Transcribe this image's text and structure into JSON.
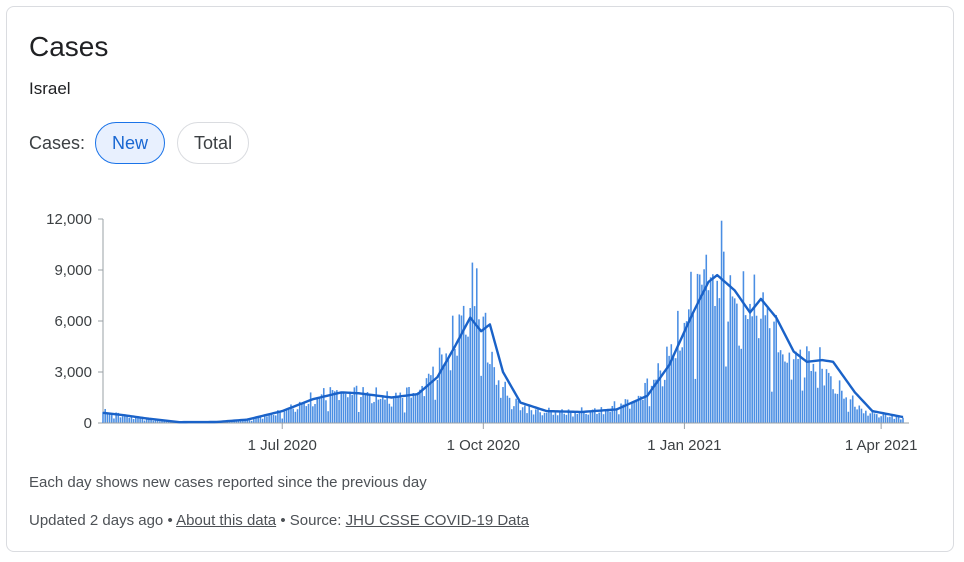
{
  "card": {
    "title": "Cases",
    "subtitle": "Israel",
    "toggle_label": "Cases:",
    "toggle_new": "New",
    "toggle_total": "Total",
    "note": "Each day shows new cases reported since the previous day",
    "updated": "Updated 2 days ago",
    "bullet": "•",
    "about_link": "About this data",
    "source_label": "Source:",
    "source_link": "JHU CSSE COVID-19 Data"
  },
  "colors": {
    "bar": "#4a8ee3",
    "line": "#1a62c8",
    "active_chip_bg": "#e8f0fe",
    "active_chip_text": "#1967d2"
  },
  "chart_data": {
    "type": "bar",
    "x_range": [
      "2020-04-10",
      "2021-04-11"
    ],
    "ylim": [
      0,
      12000
    ],
    "yticks": [
      0,
      3000,
      6000,
      9000,
      12000
    ],
    "ytick_labels": [
      "0",
      "3,000",
      "6,000",
      "9,000",
      "12,000"
    ],
    "xticks": [
      "2020-07-01",
      "2020-10-01",
      "2021-01-01",
      "2021-04-01"
    ],
    "xtick_labels": [
      "1 Jul 2020",
      "1 Oct 2020",
      "1 Jan 2021",
      "1 Apr 2021"
    ],
    "grid": false,
    "legend": "none",
    "daily_cases_anchors": [
      {
        "date": "2020-04-10",
        "value": 650
      },
      {
        "date": "2020-04-20",
        "value": 420
      },
      {
        "date": "2020-05-01",
        "value": 220
      },
      {
        "date": "2020-05-15",
        "value": 40
      },
      {
        "date": "2020-06-01",
        "value": 60
      },
      {
        "date": "2020-06-15",
        "value": 180
      },
      {
        "date": "2020-07-01",
        "value": 650
      },
      {
        "date": "2020-07-15",
        "value": 1400
      },
      {
        "date": "2020-07-25",
        "value": 1850
      },
      {
        "date": "2020-08-05",
        "value": 1800
      },
      {
        "date": "2020-08-20",
        "value": 1450
      },
      {
        "date": "2020-09-01",
        "value": 1900
      },
      {
        "date": "2020-09-10",
        "value": 3200
      },
      {
        "date": "2020-09-18",
        "value": 5000
      },
      {
        "date": "2020-09-25",
        "value": 7500
      },
      {
        "date": "2020-10-01",
        "value": 5500
      },
      {
        "date": "2020-10-08",
        "value": 2400
      },
      {
        "date": "2020-10-15",
        "value": 1200
      },
      {
        "date": "2020-10-25",
        "value": 700
      },
      {
        "date": "2020-11-10",
        "value": 650
      },
      {
        "date": "2020-11-25",
        "value": 750
      },
      {
        "date": "2020-12-10",
        "value": 1400
      },
      {
        "date": "2020-12-20",
        "value": 2800
      },
      {
        "date": "2020-12-28",
        "value": 4800
      },
      {
        "date": "2021-01-05",
        "value": 7200
      },
      {
        "date": "2021-01-12",
        "value": 8800
      },
      {
        "date": "2021-01-20",
        "value": 7800
      },
      {
        "date": "2021-01-26",
        "value": 6500
      },
      {
        "date": "2021-02-03",
        "value": 7400
      },
      {
        "date": "2021-02-10",
        "value": 5500
      },
      {
        "date": "2021-02-17",
        "value": 3800
      },
      {
        "date": "2021-02-25",
        "value": 3700
      },
      {
        "date": "2021-03-05",
        "value": 3300
      },
      {
        "date": "2021-03-15",
        "value": 1600
      },
      {
        "date": "2021-03-25",
        "value": 650
      },
      {
        "date": "2021-04-11",
        "value": 300
      }
    ],
    "moving_average_anchors": [
      {
        "date": "2020-04-10",
        "value": 600
      },
      {
        "date": "2020-04-20",
        "value": 450
      },
      {
        "date": "2020-05-01",
        "value": 250
      },
      {
        "date": "2020-05-15",
        "value": 50
      },
      {
        "date": "2020-06-01",
        "value": 60
      },
      {
        "date": "2020-06-15",
        "value": 200
      },
      {
        "date": "2020-07-01",
        "value": 700
      },
      {
        "date": "2020-07-15",
        "value": 1400
      },
      {
        "date": "2020-07-28",
        "value": 1800
      },
      {
        "date": "2020-08-05",
        "value": 1750
      },
      {
        "date": "2020-08-20",
        "value": 1500
      },
      {
        "date": "2020-09-01",
        "value": 1700
      },
      {
        "date": "2020-09-10",
        "value": 2700
      },
      {
        "date": "2020-09-18",
        "value": 4500
      },
      {
        "date": "2020-09-25",
        "value": 6200
      },
      {
        "date": "2020-09-30",
        "value": 5400
      },
      {
        "date": "2020-10-04",
        "value": 5800
      },
      {
        "date": "2020-10-10",
        "value": 3000
      },
      {
        "date": "2020-10-18",
        "value": 1200
      },
      {
        "date": "2020-10-30",
        "value": 700
      },
      {
        "date": "2020-11-15",
        "value": 650
      },
      {
        "date": "2020-12-01",
        "value": 800
      },
      {
        "date": "2020-12-15",
        "value": 1600
      },
      {
        "date": "2020-12-25",
        "value": 3400
      },
      {
        "date": "2021-01-05",
        "value": 6500
      },
      {
        "date": "2021-01-12",
        "value": 8300
      },
      {
        "date": "2021-01-16",
        "value": 8700
      },
      {
        "date": "2021-01-24",
        "value": 7800
      },
      {
        "date": "2021-01-31",
        "value": 6500
      },
      {
        "date": "2021-02-05",
        "value": 7300
      },
      {
        "date": "2021-02-12",
        "value": 6200
      },
      {
        "date": "2021-02-20",
        "value": 4200
      },
      {
        "date": "2021-02-26",
        "value": 3600
      },
      {
        "date": "2021-03-05",
        "value": 3700
      },
      {
        "date": "2021-03-10",
        "value": 3600
      },
      {
        "date": "2021-03-20",
        "value": 1800
      },
      {
        "date": "2021-03-28",
        "value": 700
      },
      {
        "date": "2021-04-11",
        "value": 350
      }
    ],
    "spikes": [
      {
        "date": "2020-09-28",
        "value": 9100
      },
      {
        "date": "2021-01-18",
        "value": 11900
      },
      {
        "date": "2021-01-11",
        "value": 9900
      }
    ]
  }
}
